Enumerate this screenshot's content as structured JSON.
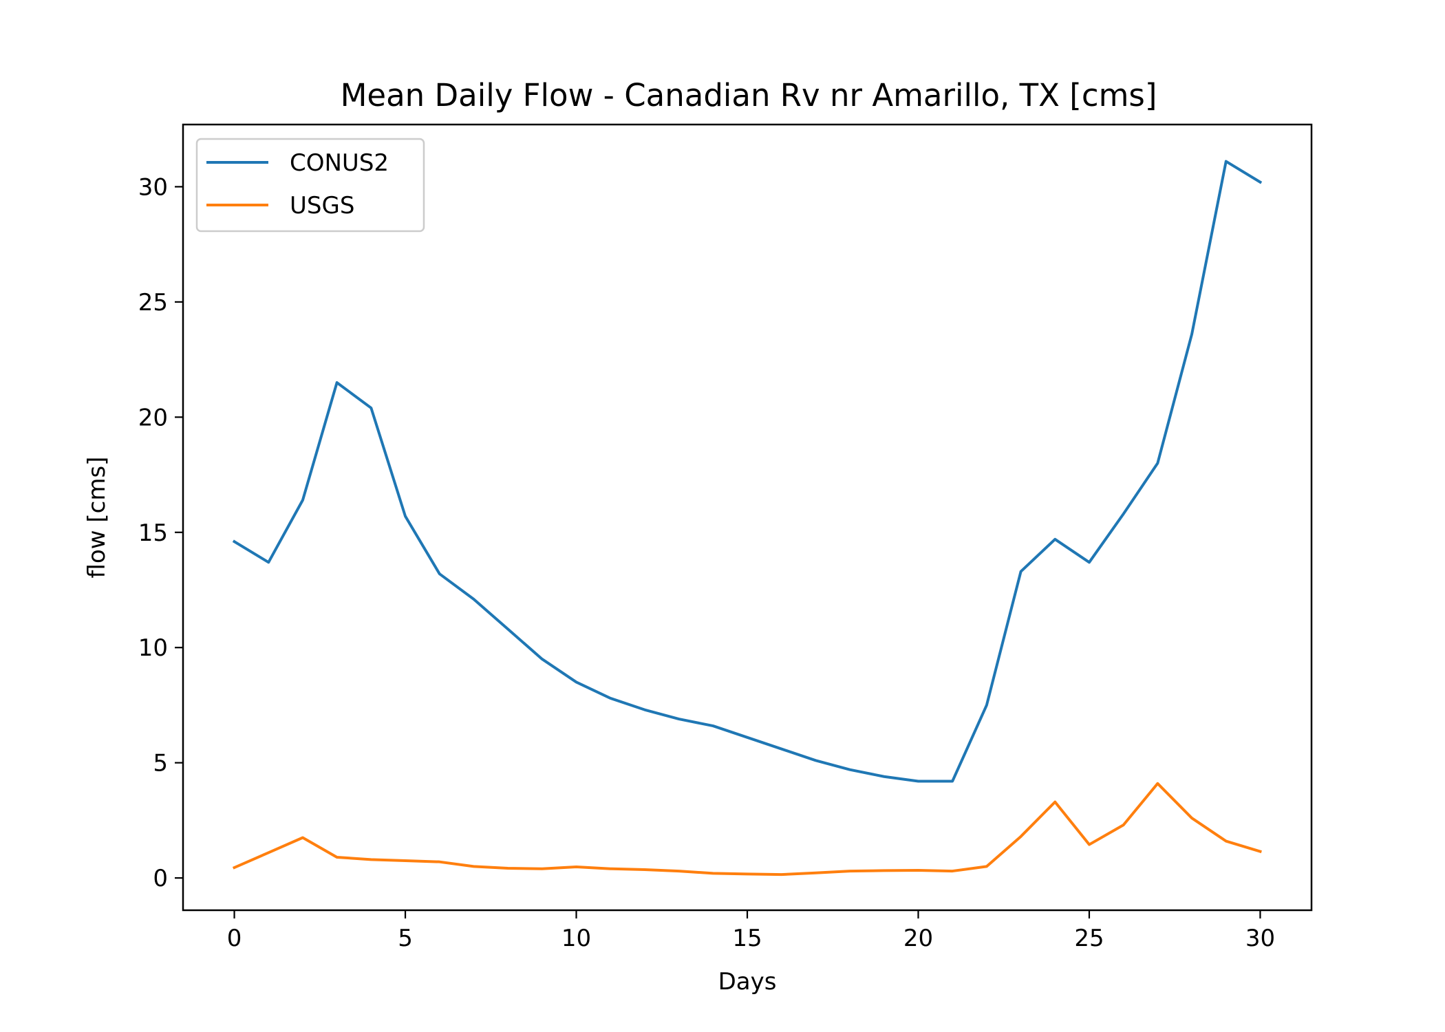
{
  "chart_data": {
    "type": "line",
    "title": "Mean Daily Flow - Canadian Rv nr Amarillo, TX [cms]",
    "xlabel": "Days",
    "ylabel": "flow [cms]",
    "xlim": [
      -1.5,
      31.5
    ],
    "ylim": [
      -1.4,
      32.7
    ],
    "xticks": [
      0,
      5,
      10,
      15,
      20,
      25,
      30
    ],
    "yticks": [
      0,
      5,
      10,
      15,
      20,
      25,
      30
    ],
    "grid": false,
    "legend_position": "upper-left",
    "x": [
      0,
      1,
      2,
      3,
      4,
      5,
      6,
      7,
      8,
      9,
      10,
      11,
      12,
      13,
      14,
      15,
      16,
      17,
      18,
      19,
      20,
      21,
      22,
      23,
      24,
      25,
      26,
      27,
      28,
      29,
      30
    ],
    "series": [
      {
        "name": "CONUS2",
        "color": "#1f77b4",
        "values": [
          14.6,
          13.7,
          16.4,
          21.5,
          20.4,
          15.7,
          13.2,
          12.1,
          10.8,
          9.5,
          8.5,
          7.8,
          7.3,
          6.9,
          6.6,
          6.1,
          5.6,
          5.1,
          4.7,
          4.4,
          4.2,
          4.2,
          7.5,
          13.3,
          14.7,
          13.7,
          15.8,
          18.0,
          23.6,
          31.1,
          30.2
        ]
      },
      {
        "name": "USGS",
        "color": "#ff7f0e",
        "values": [
          0.45,
          1.1,
          1.75,
          0.9,
          0.8,
          0.75,
          0.7,
          0.5,
          0.42,
          0.4,
          0.48,
          0.4,
          0.36,
          0.3,
          0.2,
          0.17,
          0.15,
          0.22,
          0.3,
          0.32,
          0.33,
          0.3,
          0.5,
          1.8,
          3.3,
          1.45,
          2.3,
          4.1,
          2.6,
          1.6,
          1.15
        ]
      }
    ]
  }
}
